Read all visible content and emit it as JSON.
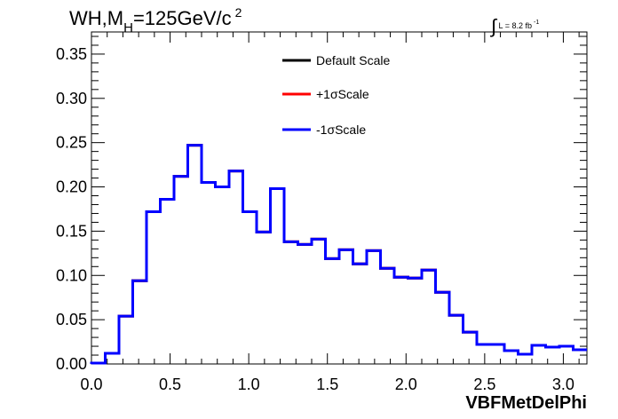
{
  "header": {
    "title_main": "WH,M",
    "title_sub": "H",
    "title_mid": "=125GeV/c",
    "title_sup": "2",
    "lumi_text": "L = 8.2 fb",
    "lumi_sup": "-1"
  },
  "chart_data": {
    "type": "line",
    "subtype": "histogram-step",
    "title": "WH,M_H=125GeV/c^2",
    "xlabel": "VBFMetDelPhi",
    "ylabel": "",
    "xlim": [
      0.0,
      3.15
    ],
    "ylim": [
      0.0,
      0.375
    ],
    "bin_width": 0.0875,
    "x_ticks": [
      0.0,
      0.5,
      1.0,
      1.5,
      2.0,
      2.5,
      3.0
    ],
    "x_tick_labels": [
      "0.0",
      "0.5",
      "1.0",
      "1.5",
      "2.0",
      "2.5",
      "3.0"
    ],
    "y_ticks": [
      0.0,
      0.05,
      0.1,
      0.15,
      0.2,
      0.25,
      0.3,
      0.35
    ],
    "y_tick_labels": [
      "0.00",
      "0.05",
      "0.10",
      "0.15",
      "0.20",
      "0.25",
      "0.30",
      "0.35"
    ],
    "bin_edges": [
      0.0,
      0.0875,
      0.175,
      0.2625,
      0.35,
      0.4375,
      0.525,
      0.6125,
      0.7,
      0.7875,
      0.875,
      0.9625,
      1.05,
      1.1375,
      1.225,
      1.3125,
      1.4,
      1.4875,
      1.575,
      1.6625,
      1.75,
      1.8375,
      1.925,
      2.0125,
      2.1,
      2.1875,
      2.275,
      2.3625,
      2.45,
      2.5375,
      2.625,
      2.7125,
      2.8,
      2.8875,
      2.975,
      3.0625,
      3.15
    ],
    "series": [
      {
        "name": "Default Scale",
        "color": "#000000",
        "values": [
          0.001,
          0.012,
          0.054,
          0.094,
          0.172,
          0.186,
          0.212,
          0.247,
          0.205,
          0.2,
          0.218,
          0.172,
          0.149,
          0.198,
          0.138,
          0.135,
          0.141,
          0.119,
          0.129,
          0.113,
          0.128,
          0.108,
          0.098,
          0.097,
          0.106,
          0.081,
          0.055,
          0.036,
          0.022,
          0.022,
          0.015,
          0.011,
          0.021,
          0.019,
          0.02,
          0.016
        ]
      },
      {
        "name": "+1σScale",
        "color": "#ff0000",
        "values": [
          0.001,
          0.012,
          0.054,
          0.094,
          0.172,
          0.186,
          0.212,
          0.247,
          0.205,
          0.2,
          0.218,
          0.172,
          0.149,
          0.198,
          0.138,
          0.135,
          0.141,
          0.119,
          0.129,
          0.113,
          0.128,
          0.108,
          0.098,
          0.097,
          0.106,
          0.081,
          0.055,
          0.036,
          0.022,
          0.022,
          0.015,
          0.011,
          0.021,
          0.019,
          0.02,
          0.016
        ]
      },
      {
        "name": "-1σScale",
        "color": "#0000ff",
        "values": [
          0.001,
          0.012,
          0.054,
          0.094,
          0.172,
          0.186,
          0.212,
          0.247,
          0.205,
          0.2,
          0.218,
          0.172,
          0.149,
          0.198,
          0.138,
          0.135,
          0.141,
          0.119,
          0.129,
          0.113,
          0.128,
          0.108,
          0.098,
          0.097,
          0.106,
          0.081,
          0.055,
          0.036,
          0.022,
          0.022,
          0.015,
          0.011,
          0.021,
          0.019,
          0.02,
          0.016
        ]
      }
    ],
    "legend": {
      "position": "top-center",
      "entries": [
        "Default Scale",
        "+1σScale",
        "-1σScale"
      ]
    }
  }
}
